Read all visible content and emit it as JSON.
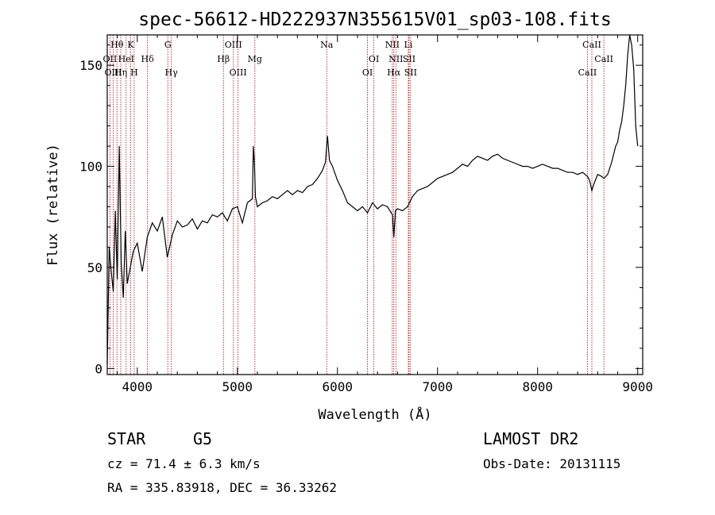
{
  "title": "spec-56612-HD222937N355615V01_sp03-108.fits",
  "info": {
    "class_label": "STAR",
    "subclass": "G5",
    "cz": "cz = 71.4 ± 6.3 km/s",
    "coords": "RA = 335.83918, DEC =  36.33262",
    "survey": "LAMOST DR2",
    "obs_date": "Obs-Date: 20131115"
  },
  "colors": {
    "axis": "#000000",
    "spectrum": "#000000",
    "line_marker": "#a01010"
  },
  "chart_data": {
    "type": "line",
    "xlabel": "Wavelength (Å)",
    "ylabel": "Flux (relative)",
    "xlim": [
      3700,
      9050
    ],
    "ylim": [
      -3,
      165
    ],
    "x_ticks": [
      4000,
      5000,
      6000,
      7000,
      8000,
      9000
    ],
    "y_ticks": [
      0,
      50,
      100,
      150
    ],
    "series": [
      {
        "x": [
          3700,
          3720,
          3740,
          3760,
          3780,
          3800,
          3820,
          3840,
          3860,
          3880,
          3900,
          3930,
          3960,
          4000,
          4050,
          4100,
          4150,
          4200,
          4250,
          4300,
          4350,
          4400,
          4450,
          4500,
          4550,
          4600,
          4650,
          4700,
          4750,
          4800,
          4850,
          4900,
          4950,
          5000,
          5050,
          5100,
          5150,
          5160,
          5170,
          5180,
          5200,
          5250,
          5300,
          5350,
          5400,
          5450,
          5500,
          5550,
          5600,
          5650,
          5700,
          5750,
          5800,
          5850,
          5880,
          5900,
          5920,
          5950,
          6000,
          6050,
          6100,
          6150,
          6200,
          6250,
          6300,
          6350,
          6400,
          6450,
          6500,
          6550,
          6563,
          6580,
          6600,
          6650,
          6700,
          6750,
          6800,
          6850,
          6900,
          6950,
          7000,
          7050,
          7100,
          7150,
          7200,
          7250,
          7300,
          7350,
          7400,
          7450,
          7500,
          7550,
          7600,
          7650,
          7700,
          7750,
          7800,
          7850,
          7900,
          7950,
          8000,
          8050,
          8100,
          8150,
          8200,
          8250,
          8300,
          8350,
          8400,
          8450,
          8498,
          8520,
          8542,
          8560,
          8600,
          8640,
          8662,
          8700,
          8740,
          8780,
          8800,
          8820,
          8840,
          8860,
          8880,
          8900,
          8920,
          8940,
          8960,
          8980,
          9000
        ],
        "y": [
          2,
          60,
          48,
          38,
          78,
          44,
          110,
          52,
          35,
          68,
          42,
          50,
          58,
          62,
          48,
          65,
          72,
          68,
          75,
          55,
          66,
          73,
          70,
          71,
          74,
          69,
          73,
          72,
          76,
          75,
          77,
          73,
          79,
          80,
          72,
          82,
          84,
          110,
          102,
          85,
          80,
          82,
          83,
          85,
          84,
          86,
          88,
          86,
          88,
          87,
          90,
          91,
          94,
          98,
          102,
          115,
          103,
          100,
          93,
          88,
          82,
          80,
          78,
          80,
          77,
          82,
          79,
          81,
          80,
          76,
          65,
          78,
          79,
          78,
          80,
          85,
          88,
          89,
          90,
          92,
          94,
          95,
          96,
          97,
          99,
          101,
          100,
          103,
          105,
          104,
          103,
          105,
          106,
          104,
          103,
          102,
          101,
          100,
          100,
          99,
          100,
          101,
          100,
          99,
          99,
          98,
          97,
          97,
          96,
          97,
          95,
          93,
          88,
          91,
          96,
          95,
          94,
          96,
          102,
          110,
          112,
          118,
          122,
          130,
          140,
          155,
          165,
          160,
          148,
          120,
          110
        ]
      }
    ],
    "lines": [
      {
        "name": "Hθ",
        "x": 3797,
        "row": 0
      },
      {
        "name": "K",
        "x": 3934,
        "row": 0
      },
      {
        "name": "G",
        "x": 4305,
        "row": 0
      },
      {
        "name": "OIII",
        "x": 4960,
        "row": 0
      },
      {
        "name": "Na",
        "x": 5893,
        "row": 0
      },
      {
        "name": "NII",
        "x": 6548,
        "row": 0
      },
      {
        "name": "Li",
        "x": 6708,
        "row": 0
      },
      {
        "name": "CaII",
        "x": 8542,
        "row": 0
      },
      {
        "name": "OII",
        "x": 3727,
        "row": 1
      },
      {
        "name": "HeI",
        "x": 3889,
        "row": 1
      },
      {
        "name": "Hδ",
        "x": 4102,
        "row": 1
      },
      {
        "name": "Hβ",
        "x": 4861,
        "row": 1
      },
      {
        "name": "Mg",
        "x": 5175,
        "row": 1
      },
      {
        "name": "OI",
        "x": 6364,
        "row": 1
      },
      {
        "name": "NII",
        "x": 6584,
        "row": 1
      },
      {
        "name": "SII",
        "x": 6716,
        "row": 1
      },
      {
        "name": "CaII",
        "x": 8662,
        "row": 1
      },
      {
        "name": "OIII",
        "x": 3760,
        "row": 2
      },
      {
        "name": "Hη",
        "x": 3835,
        "row": 2
      },
      {
        "name": "H",
        "x": 3969,
        "row": 2
      },
      {
        "name": "Hγ",
        "x": 4340,
        "row": 2
      },
      {
        "name": "OIII",
        "x": 5007,
        "row": 2
      },
      {
        "name": "OI",
        "x": 6300,
        "row": 2
      },
      {
        "name": "Hα",
        "x": 6563,
        "row": 2
      },
      {
        "name": "SII",
        "x": 6731,
        "row": 2
      },
      {
        "name": "CaII",
        "x": 8498,
        "row": 2
      }
    ]
  }
}
